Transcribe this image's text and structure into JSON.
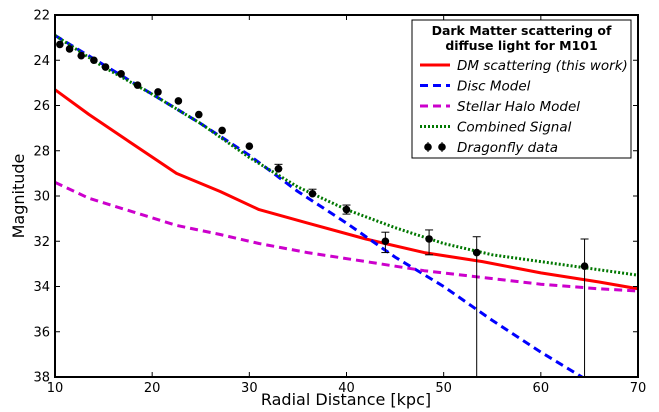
{
  "chart_data": {
    "type": "line",
    "title": "",
    "xlabel": "Radial Distance [kpc]",
    "ylabel": "Magnitude",
    "xlim": [
      10,
      70
    ],
    "ylim": [
      38,
      22
    ],
    "y_inverted": true,
    "grid": false,
    "legend_position": "top-right",
    "legend_title": "Dark Matter scattering of\ndiffuse light for M101",
    "xticks": [
      "10",
      "20",
      "30",
      "40",
      "50",
      "60",
      "70"
    ],
    "yticks": [
      "22",
      "24",
      "26",
      "28",
      "30",
      "32",
      "34",
      "36",
      "38"
    ],
    "series": [
      {
        "name": "DM scattering (this work)",
        "style": "solid",
        "color": "#ff0000",
        "x": [
          10,
          13.5,
          18,
          22.5,
          27,
          31,
          36,
          42,
          48,
          54,
          60,
          66,
          70
        ],
        "y": [
          25.3,
          26.4,
          27.7,
          29.0,
          29.8,
          30.6,
          31.2,
          31.9,
          32.5,
          32.9,
          33.4,
          33.8,
          34.1
        ]
      },
      {
        "name": "Disc Model",
        "style": "dashed",
        "color": "#0000ff",
        "x": [
          10,
          15,
          20,
          25,
          30,
          35,
          40,
          45,
          50,
          55,
          60,
          65
        ],
        "y": [
          22.9,
          24.2,
          25.5,
          26.8,
          28.2,
          29.8,
          31.2,
          32.7,
          34.0,
          35.5,
          36.9,
          38.2
        ]
      },
      {
        "name": "Stellar Halo Model",
        "style": "dashed",
        "color": "#cc00cc",
        "x": [
          10,
          13.5,
          18,
          22.5,
          27,
          31,
          36,
          42,
          48,
          54,
          60,
          66,
          70
        ],
        "y": [
          29.4,
          30.1,
          30.7,
          31.3,
          31.7,
          32.1,
          32.5,
          32.9,
          33.3,
          33.6,
          33.9,
          34.1,
          34.2
        ]
      },
      {
        "name": "Combined Signal",
        "style": "dotted",
        "color": "#007700",
        "x": [
          10,
          15,
          20,
          25,
          30,
          35,
          40,
          45,
          50,
          55,
          60,
          65,
          70
        ],
        "y": [
          22.9,
          24.3,
          25.5,
          26.8,
          28.3,
          29.6,
          30.6,
          31.4,
          32.1,
          32.6,
          32.9,
          33.2,
          33.5
        ]
      },
      {
        "name": "Dragonfly data",
        "style": "points",
        "color": "#000000",
        "x": [
          10.5,
          11.5,
          12.7,
          14,
          15.2,
          16.8,
          18.5,
          20.6,
          22.7,
          24.8,
          27.2,
          30,
          33,
          36.5,
          40,
          44,
          48.5,
          53.4,
          64.5
        ],
        "y": [
          23.3,
          23.5,
          23.8,
          24.0,
          24.3,
          24.6,
          25.1,
          25.4,
          25.8,
          26.4,
          27.1,
          27.8,
          28.8,
          29.9,
          30.6,
          32.0,
          31.9,
          32.5,
          33.1
        ],
        "err_low": [
          0,
          0,
          0,
          0,
          0,
          0,
          0,
          0,
          0,
          0,
          0,
          0,
          0,
          0,
          0.2,
          0.5,
          0.7,
          5.5,
          4.9
        ],
        "err_high": [
          0,
          0,
          0,
          0,
          0,
          0,
          0,
          0,
          0,
          0,
          0,
          0,
          0.2,
          0.2,
          0.2,
          0.4,
          0.4,
          0.7,
          1.2
        ]
      }
    ]
  }
}
